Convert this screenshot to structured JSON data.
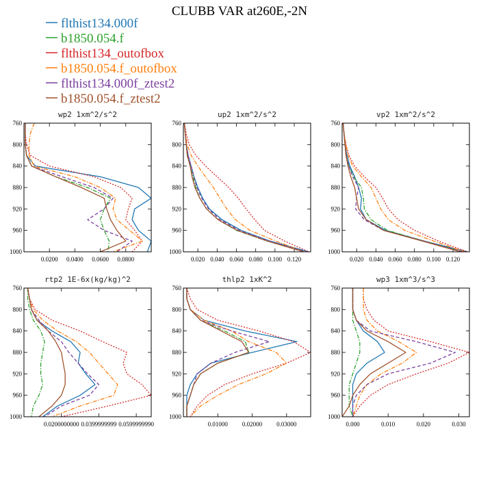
{
  "figure": {
    "title": "CLUBB VAR at260E,-2N",
    "legend": [
      {
        "label": "flthist134.000f",
        "color": "#1f77b4",
        "dash": "solid"
      },
      {
        "label": "b1850.054.f",
        "color": "#2ca02c",
        "dash": "dashdot"
      },
      {
        "label": "flthist134_outofbox",
        "color": "#d62728",
        "dash": "dot"
      },
      {
        "label": "b1850.054.f_outofbox",
        "color": "#ff7f0e",
        "dash": "dashdot"
      },
      {
        "label": "flthist134.000f_ztest2",
        "color": "#7b3f9e",
        "dash": "dash"
      },
      {
        "label": "b1850.054.f_ztest2",
        "color": "#a0522d",
        "dash": "solid"
      }
    ]
  },
  "chart_data": [
    {
      "type": "line",
      "title": "wp2   1xm^2/s^2",
      "xlim": [
        0.0,
        0.1
      ],
      "ylim": [
        760,
        1000
      ],
      "y_inverted": true,
      "xticks": [
        0.02,
        0.04,
        0.06,
        0.08
      ],
      "xticklabels": [
        "0.0200",
        "0.0400",
        "0.0600",
        "0.0800"
      ],
      "yticks": [
        760,
        800,
        840,
        880,
        920,
        960,
        1000
      ],
      "y": [
        760,
        780,
        800,
        820,
        840,
        860,
        880,
        900,
        920,
        940,
        960,
        980,
        1000
      ],
      "series": [
        {
          "values": [
            0.001,
            0.001,
            0.001,
            0.002,
            0.009,
            0.06,
            0.09,
            0.1,
            0.087,
            0.085,
            0.09,
            0.1,
            0.097
          ]
        },
        {
          "values": [
            0.001,
            0.001,
            0.001,
            0.002,
            0.006,
            0.025,
            0.05,
            0.068,
            0.063,
            0.06,
            0.063,
            0.067,
            0.066
          ]
        },
        {
          "values": [
            0.001,
            0.001,
            0.002,
            0.005,
            0.02,
            0.055,
            0.076,
            0.085,
            0.082,
            0.08,
            0.087,
            0.093,
            0.085
          ]
        },
        {
          "values": [
            0.008,
            0.005,
            0.004,
            0.004,
            0.008,
            0.04,
            0.06,
            0.072,
            0.07,
            0.073,
            0.083,
            0.093,
            0.07
          ]
        },
        {
          "values": [
            0.001,
            0.001,
            0.001,
            0.002,
            0.006,
            0.03,
            0.055,
            0.07,
            0.063,
            0.05,
            0.063,
            0.085,
            0.073
          ]
        },
        {
          "values": [
            0.001,
            0.001,
            0.001,
            0.002,
            0.006,
            0.025,
            0.045,
            0.063,
            0.065,
            0.068,
            0.073,
            0.08,
            0.06
          ]
        }
      ]
    },
    {
      "type": "line",
      "title": "up2   1xm^2/s^2",
      "xlim": [
        0.005,
        0.137
      ],
      "ylim": [
        760,
        1000
      ],
      "y_inverted": true,
      "xticks": [
        0.02,
        0.04,
        0.06,
        0.08,
        0.1,
        0.12
      ],
      "xticklabels": [
        "0.020",
        "0.040",
        "0.060",
        "0.080",
        "0.100",
        "0.120"
      ],
      "yticks": [
        760,
        800,
        840,
        880,
        920,
        960,
        1000
      ],
      "y": [
        760,
        780,
        800,
        820,
        840,
        860,
        880,
        900,
        920,
        940,
        960,
        980,
        1000
      ],
      "series": [
        {
          "values": [
            0.006,
            0.007,
            0.008,
            0.01,
            0.013,
            0.016,
            0.02,
            0.025,
            0.032,
            0.045,
            0.065,
            0.095,
            0.135
          ]
        },
        {
          "values": [
            0.006,
            0.007,
            0.008,
            0.009,
            0.012,
            0.015,
            0.018,
            0.022,
            0.029,
            0.041,
            0.06,
            0.092,
            0.13
          ]
        },
        {
          "values": [
            0.006,
            0.008,
            0.011,
            0.018,
            0.028,
            0.04,
            0.052,
            0.062,
            0.07,
            0.079,
            0.089,
            0.11,
            0.135
          ]
        },
        {
          "values": [
            0.006,
            0.007,
            0.009,
            0.013,
            0.02,
            0.028,
            0.036,
            0.043,
            0.05,
            0.059,
            0.074,
            0.101,
            0.13
          ]
        },
        {
          "values": [
            0.006,
            0.007,
            0.008,
            0.01,
            0.013,
            0.016,
            0.019,
            0.024,
            0.031,
            0.043,
            0.063,
            0.094,
            0.132
          ]
        },
        {
          "values": [
            0.006,
            0.007,
            0.008,
            0.009,
            0.012,
            0.014,
            0.017,
            0.022,
            0.029,
            0.041,
            0.061,
            0.092,
            0.13
          ]
        }
      ]
    },
    {
      "type": "line",
      "title": "vp2   1xm^2/s^2",
      "xlim": [
        0.005,
        0.137
      ],
      "ylim": [
        760,
        1000
      ],
      "y_inverted": true,
      "xticks": [
        0.02,
        0.04,
        0.06,
        0.08,
        0.1,
        0.12
      ],
      "xticklabels": [
        "0.020",
        "0.040",
        "0.060",
        "0.080",
        "0.100",
        "0.120"
      ],
      "yticks": [
        760,
        800,
        840,
        880,
        920,
        960,
        1000
      ],
      "y": [
        760,
        780,
        800,
        820,
        840,
        860,
        880,
        900,
        920,
        940,
        960,
        980,
        1000
      ],
      "series": [
        {
          "values": [
            0.006,
            0.007,
            0.008,
            0.01,
            0.013,
            0.018,
            0.022,
            0.025,
            0.024,
            0.03,
            0.05,
            0.09,
            0.135
          ]
        },
        {
          "values": [
            0.006,
            0.007,
            0.008,
            0.009,
            0.012,
            0.017,
            0.025,
            0.027,
            0.028,
            0.035,
            0.052,
            0.09,
            0.13
          ]
        },
        {
          "values": [
            0.006,
            0.007,
            0.009,
            0.012,
            0.018,
            0.028,
            0.04,
            0.047,
            0.053,
            0.063,
            0.08,
            0.105,
            0.135
          ]
        },
        {
          "values": [
            0.006,
            0.007,
            0.009,
            0.011,
            0.016,
            0.025,
            0.035,
            0.04,
            0.045,
            0.053,
            0.07,
            0.1,
            0.132
          ]
        },
        {
          "values": [
            0.006,
            0.007,
            0.008,
            0.009,
            0.012,
            0.016,
            0.022,
            0.02,
            0.019,
            0.028,
            0.048,
            0.09,
            0.13
          ]
        },
        {
          "values": [
            0.006,
            0.007,
            0.008,
            0.009,
            0.011,
            0.014,
            0.018,
            0.02,
            0.022,
            0.03,
            0.048,
            0.088,
            0.128
          ]
        }
      ]
    },
    {
      "type": "line",
      "title": "rtp2   1E-6x(kg/kg)^2",
      "xlim": [
        0.0,
        0.068
      ],
      "ylim": [
        760,
        1000
      ],
      "y_inverted": true,
      "xticks": [
        0.02,
        0.04,
        0.06
      ],
      "xticklabels": [
        "0.0200000000",
        "0.0399999999",
        "0.0599999990"
      ],
      "yticks": [
        760,
        800,
        840,
        880,
        920,
        960,
        1000
      ],
      "y": [
        760,
        780,
        800,
        820,
        840,
        860,
        880,
        900,
        920,
        940,
        960,
        980,
        1000
      ],
      "series": [
        {
          "values": [
            0.002,
            0.003,
            0.004,
            0.007,
            0.015,
            0.025,
            0.03,
            0.029,
            0.033,
            0.038,
            0.03,
            0.018,
            0.01
          ]
        },
        {
          "values": [
            0.002,
            0.002,
            0.003,
            0.005,
            0.009,
            0.011,
            0.01,
            0.009,
            0.009,
            0.01,
            0.008,
            0.005,
            0.004
          ]
        },
        {
          "values": [
            0.002,
            0.003,
            0.006,
            0.015,
            0.03,
            0.042,
            0.055,
            0.053,
            0.055,
            0.063,
            0.068,
            0.045,
            0.02
          ]
        },
        {
          "values": [
            0.002,
            0.003,
            0.005,
            0.01,
            0.018,
            0.028,
            0.035,
            0.04,
            0.045,
            0.05,
            0.048,
            0.03,
            0.015
          ]
        },
        {
          "values": [
            0.002,
            0.003,
            0.004,
            0.008,
            0.013,
            0.02,
            0.024,
            0.029,
            0.034,
            0.04,
            0.035,
            0.02,
            0.011
          ]
        },
        {
          "values": [
            0.002,
            0.003,
            0.004,
            0.007,
            0.013,
            0.017,
            0.02,
            0.021,
            0.022,
            0.022,
            0.02,
            0.015,
            0.008
          ]
        }
      ]
    },
    {
      "type": "line",
      "title": "thlp2   1xK^2",
      "xlim": [
        0.0,
        0.037
      ],
      "ylim": [
        760,
        1000
      ],
      "y_inverted": true,
      "xticks": [
        0.01,
        0.02,
        0.03
      ],
      "xticklabels": [
        "0.01000",
        "0.02000",
        "0.03000"
      ],
      "yticks": [
        760,
        800,
        840,
        880,
        920,
        960,
        1000
      ],
      "y": [
        760,
        780,
        800,
        820,
        840,
        860,
        880,
        900,
        920,
        940,
        960,
        980,
        1000
      ],
      "series": [
        {
          "values": [
            0.001,
            0.001,
            0.002,
            0.006,
            0.018,
            0.033,
            0.02,
            0.008,
            0.004,
            0.002,
            0.001,
            0.001,
            0.001
          ]
        },
        {
          "values": [
            0.001,
            0.001,
            0.002,
            0.005,
            0.012,
            0.018,
            0.019,
            0.01,
            0.005,
            0.003,
            0.002,
            0.001,
            0.001
          ]
        },
        {
          "values": [
            0.001,
            0.002,
            0.004,
            0.01,
            0.022,
            0.032,
            0.037,
            0.03,
            0.02,
            0.012,
            0.007,
            0.004,
            0.002
          ]
        },
        {
          "values": [
            0.001,
            0.001,
            0.002,
            0.006,
            0.014,
            0.019,
            0.027,
            0.03,
            0.024,
            0.016,
            0.01,
            0.005,
            0.002
          ]
        },
        {
          "values": [
            0.001,
            0.001,
            0.002,
            0.005,
            0.014,
            0.025,
            0.015,
            0.008,
            0.004,
            0.003,
            0.002,
            0.001,
            0.001
          ]
        },
        {
          "values": [
            0.001,
            0.001,
            0.002,
            0.005,
            0.011,
            0.017,
            0.019,
            0.01,
            0.005,
            0.003,
            0.002,
            0.001,
            0.001
          ]
        }
      ]
    },
    {
      "type": "line",
      "title": "wp3   1xm^3/s^3",
      "xlim": [
        -0.003,
        0.033
      ],
      "ylim": [
        760,
        1000
      ],
      "y_inverted": true,
      "xticks": [
        0.0,
        0.01,
        0.02,
        0.03
      ],
      "xticklabels": [
        "0.000",
        "0.010",
        "0.020",
        "0.030"
      ],
      "yticks": [
        760,
        800,
        840,
        880,
        920,
        960,
        1000
      ],
      "y": [
        760,
        780,
        800,
        820,
        840,
        860,
        880,
        900,
        920,
        940,
        960,
        980,
        1000
      ],
      "series": [
        {
          "values": [
            0.0,
            0.0,
            0.0,
            0.001,
            0.003,
            0.007,
            0.009,
            0.004,
            0.001,
            0.0,
            0.0,
            0.0,
            0.0
          ]
        },
        {
          "values": [
            0.0,
            0.0,
            0.0,
            0.0,
            0.001,
            0.002,
            0.002,
            0.001,
            0.0,
            -0.001,
            -0.001,
            -0.001,
            0.0
          ]
        },
        {
          "values": [
            0.003,
            0.003,
            0.004,
            0.006,
            0.01,
            0.022,
            0.033,
            0.027,
            0.018,
            0.01,
            0.005,
            0.002,
            0.0
          ]
        },
        {
          "values": [
            0.003,
            0.003,
            0.003,
            0.004,
            0.007,
            0.013,
            0.018,
            0.014,
            0.008,
            0.004,
            0.002,
            0.001,
            0.0
          ]
        },
        {
          "values": [
            0.0,
            0.0,
            0.0,
            0.001,
            0.005,
            0.018,
            0.029,
            0.022,
            0.01,
            0.004,
            0.001,
            0.0,
            0.0
          ]
        },
        {
          "values": [
            0.0,
            0.0,
            0.0,
            0.001,
            0.004,
            0.01,
            0.015,
            0.01,
            0.005,
            0.002,
            0.0,
            -0.001,
            -0.003
          ]
        }
      ]
    }
  ]
}
